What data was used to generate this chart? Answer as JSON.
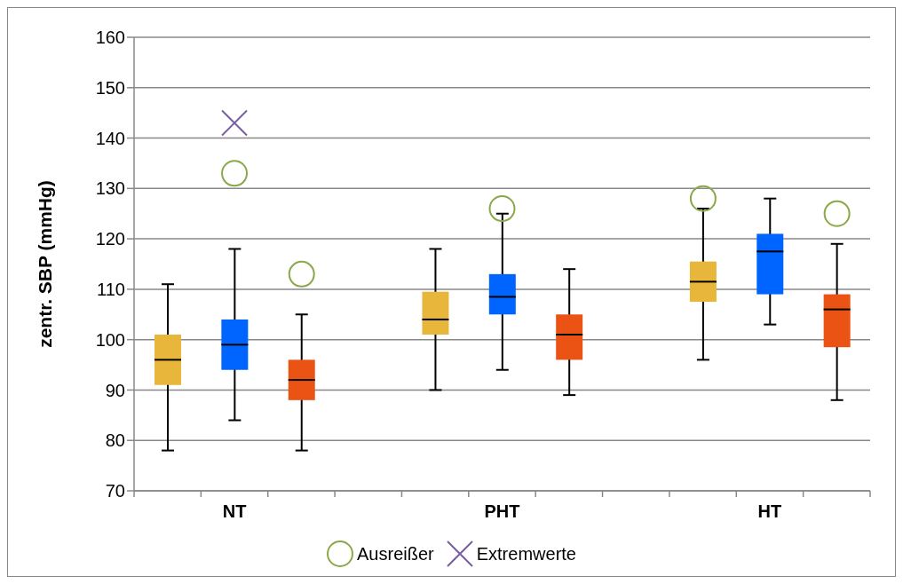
{
  "chart_data": {
    "type": "box",
    "ylabel": "zentr. SBP (mmHg)",
    "categories": [
      null,
      "NT",
      null,
      null,
      null,
      "PHT",
      null,
      null,
      null,
      "HT",
      null
    ],
    "ylim": [
      70,
      160
    ],
    "yticks": [
      70,
      80,
      90,
      100,
      110,
      120,
      130,
      140,
      150,
      160
    ],
    "grid": "y",
    "legend": "bottom",
    "series": [
      {
        "color": "#e8b63a",
        "boxes": [
          {
            "low": 78,
            "q1": 91,
            "median": 96,
            "q3": 101,
            "high": 111
          },
          null,
          null,
          null,
          null,
          null,
          null,
          null,
          null,
          null,
          null
        ]
      },
      {
        "color": "#0065ff",
        "boxes": [
          null,
          {
            "low": 84,
            "q1": 94,
            "median": 99,
            "q3": 104,
            "high": 118
          },
          null,
          null,
          null,
          null,
          null,
          null,
          null,
          null,
          null
        ]
      },
      {
        "color": "#ea5314",
        "boxes": [
          null,
          null,
          {
            "low": 78,
            "q1": 88,
            "median": 92,
            "q3": 96,
            "high": 105,
            "outliers": [
              113
            ]
          },
          null,
          null,
          null,
          null,
          null,
          null,
          null,
          null
        ]
      },
      {
        "color": "#e8b63a",
        "boxes": [
          null,
          null,
          null,
          null,
          {
            "low": 90,
            "q1": 101,
            "median": 104,
            "q3": 109.5,
            "high": 118
          },
          null,
          null,
          null,
          null,
          null,
          null
        ]
      },
      {
        "color": "#0065ff",
        "boxes": [
          null,
          null,
          null,
          null,
          null,
          {
            "low": 94,
            "q1": 105,
            "median": 108.5,
            "q3": 113,
            "high": 125
          },
          null,
          null,
          null,
          null,
          null
        ]
      },
      {
        "color": "#ea5314",
        "boxes": [
          null,
          null,
          null,
          null,
          null,
          null,
          {
            "low": 89,
            "q1": 96,
            "median": 101,
            "q3": 105,
            "high": 114
          },
          null,
          null,
          null,
          null
        ]
      },
      {
        "color": "#e8b63a",
        "boxes": [
          null,
          null,
          null,
          null,
          null,
          null,
          null,
          null,
          {
            "low": 96,
            "q1": 107.5,
            "median": 111.5,
            "q3": 115.5,
            "high": 126,
            "outliers": [
              128
            ]
          },
          null,
          null
        ]
      },
      {
        "color": "#0065ff",
        "boxes": [
          null,
          null,
          null,
          null,
          null,
          null,
          null,
          null,
          null,
          {
            "low": 103,
            "q1": 109,
            "median": 117.5,
            "q3": 121,
            "high": 128
          },
          null
        ]
      },
      {
        "color": "#ea5314",
        "boxes": [
          null,
          null,
          null,
          null,
          null,
          null,
          null,
          null,
          null,
          null,
          {
            "low": 88,
            "q1": 98.5,
            "median": 106,
            "q3": 109,
            "high": 119,
            "outliers": [
              125
            ]
          }
        ]
      },
      {
        "type": "scatter",
        "name": "Ausreißer",
        "marker": "circle",
        "color": "#8aa84a",
        "x": [
          "NT",
          "PHT"
        ],
        "values": [
          133,
          126
        ]
      },
      {
        "type": "scatter",
        "name": "Extremwerte",
        "marker": "cross",
        "color": "#7a5fa0",
        "x": [
          "NT"
        ],
        "values": [
          143
        ]
      }
    ]
  }
}
